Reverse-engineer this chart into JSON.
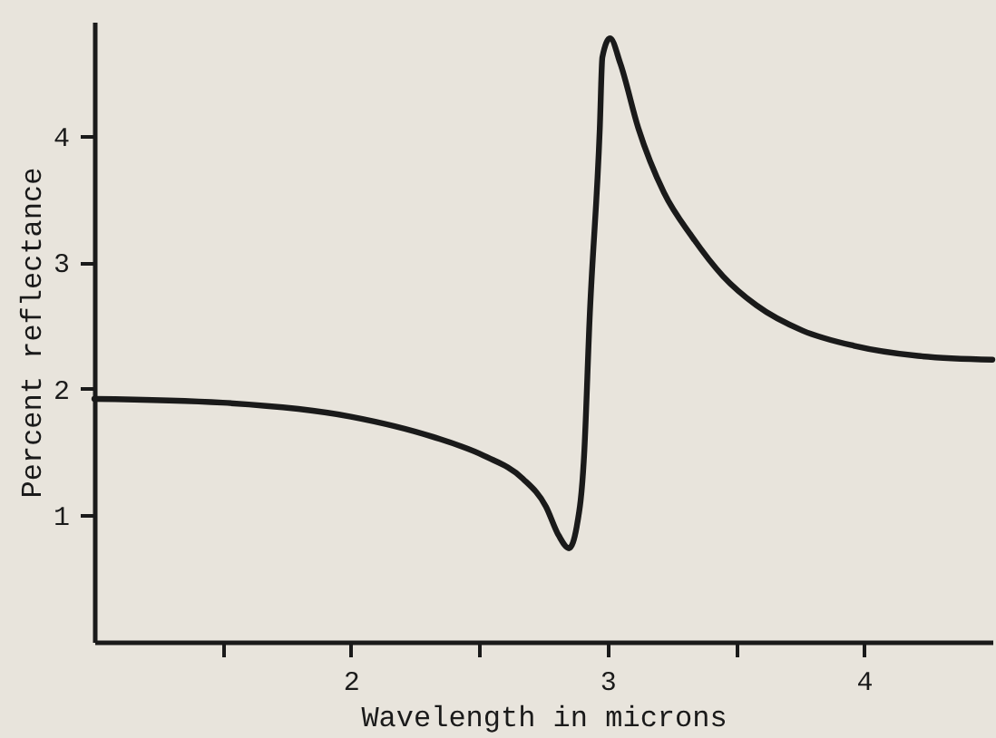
{
  "chart_data": {
    "type": "line",
    "xlabel": "Wavelength in microns",
    "ylabel": "Percent reflectance",
    "x": [
      1.0,
      1.5,
      2.0,
      2.32,
      2.52,
      2.67,
      2.76,
      2.81,
      2.85,
      2.88,
      2.91,
      2.93,
      2.97,
      2.98,
      3.01,
      3.05,
      3.12,
      3.22,
      3.33,
      3.45,
      3.58,
      3.76,
      3.96,
      4.21,
      4.5
    ],
    "series": [
      {
        "color": "#1a1a1a",
        "values": [
          1.92,
          1.89,
          1.78,
          1.62,
          1.47,
          1.29,
          1.07,
          0.84,
          0.74,
          0.91,
          1.52,
          2.54,
          4.06,
          4.62,
          4.77,
          4.57,
          4.06,
          3.55,
          3.2,
          2.89,
          2.66,
          2.46,
          2.34,
          2.26,
          2.23
        ]
      }
    ],
    "xlim": [
      1.0,
      4.5
    ],
    "ylim": [
      0,
      4.9
    ],
    "xticks": [
      {
        "value": 1.5,
        "label": null
      },
      2,
      {
        "value": 2.5,
        "label": null
      },
      3,
      {
        "value": 3.5,
        "label": null
      },
      4
    ],
    "yticks": [
      1,
      2,
      3,
      4
    ],
    "grid": false,
    "line_style": "solid"
  }
}
